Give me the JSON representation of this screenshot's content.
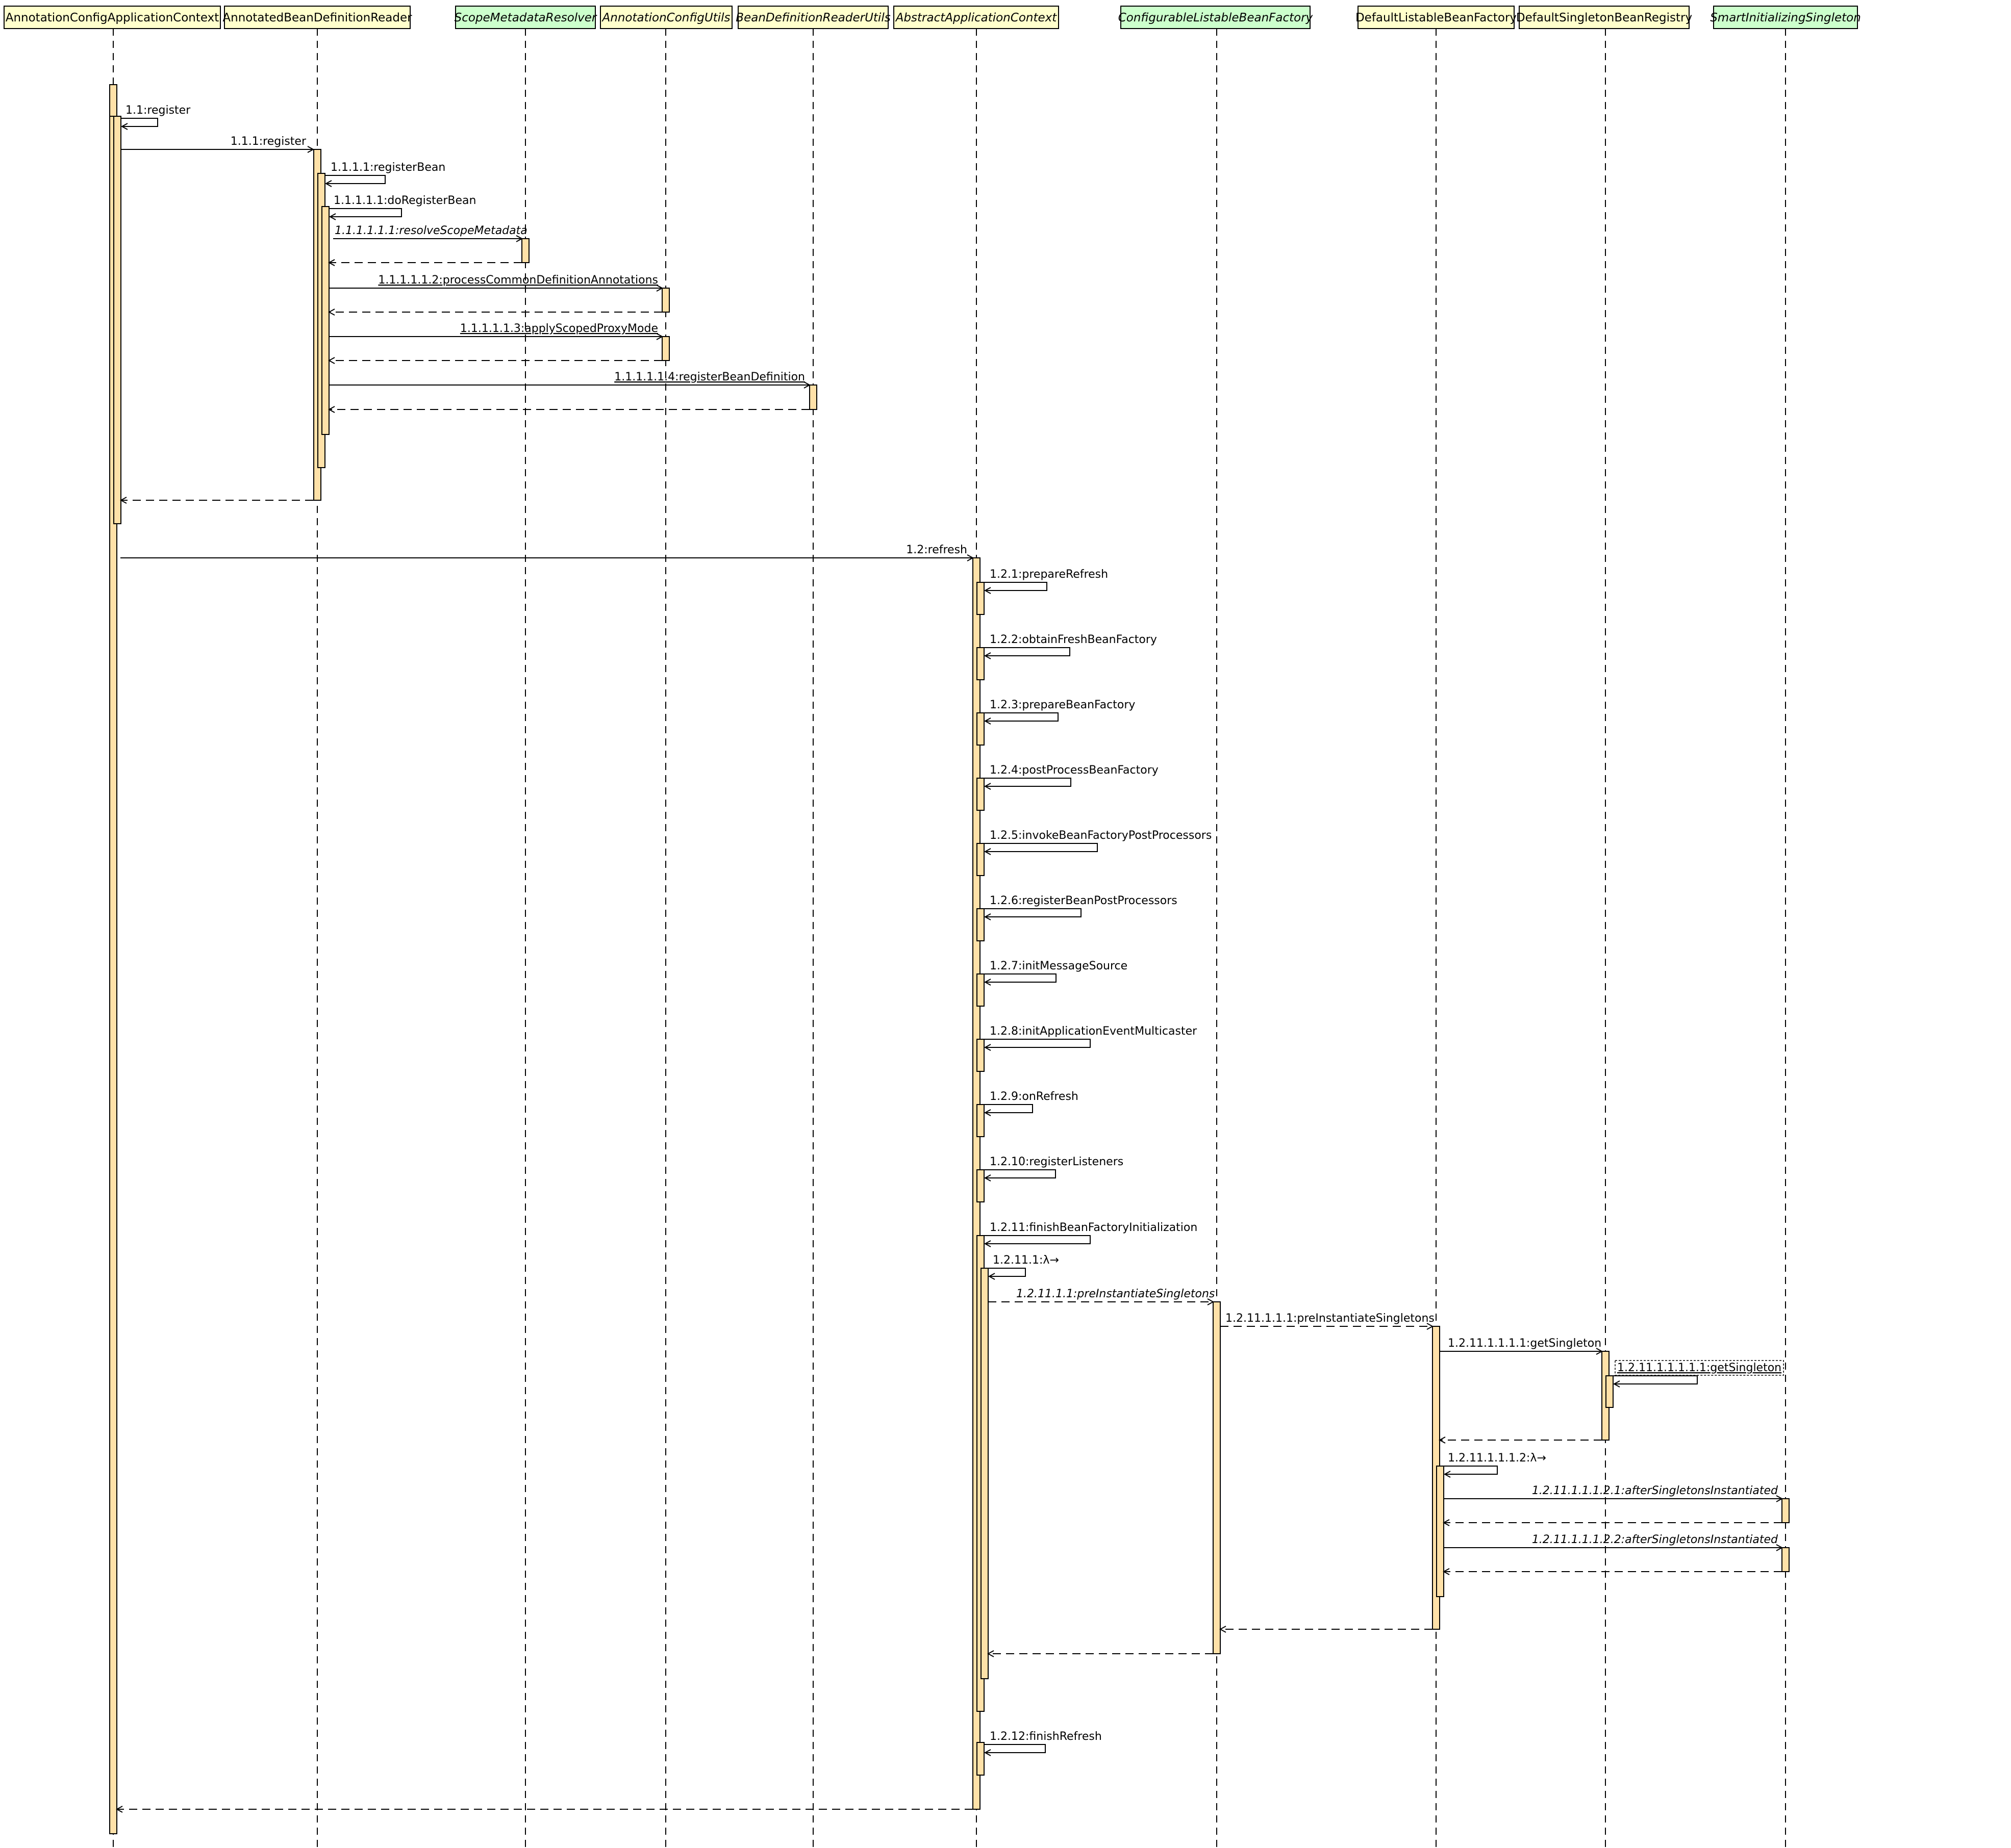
{
  "colors": {
    "class_box": "#ffffcc",
    "interface_box": "#ccffcc",
    "activation": "#ffe1a8",
    "stroke": "#000000"
  },
  "lifelines": [
    {
      "id": "acac",
      "name": "AnnotationConfigApplicationContext",
      "kind": "class",
      "italic": false
    },
    {
      "id": "abdr",
      "name": "AnnotatedBeanDefinitionReader",
      "kind": "class",
      "italic": false
    },
    {
      "id": "smr",
      "name": "ScopeMetadataResolver",
      "kind": "interface",
      "italic": true
    },
    {
      "id": "acu",
      "name": "AnnotationConfigUtils",
      "kind": "class",
      "italic": true
    },
    {
      "id": "bdru",
      "name": "BeanDefinitionReaderUtils",
      "kind": "class",
      "italic": true
    },
    {
      "id": "aac",
      "name": "AbstractApplicationContext",
      "kind": "class",
      "italic": true
    },
    {
      "id": "clbf",
      "name": "ConfigurableListableBeanFactory",
      "kind": "interface",
      "italic": true
    },
    {
      "id": "dlbf",
      "name": "DefaultListableBeanFactory",
      "kind": "class",
      "italic": false
    },
    {
      "id": "dsbr",
      "name": "DefaultSingletonBeanRegistry",
      "kind": "class",
      "italic": false
    },
    {
      "id": "sis",
      "name": "SmartInitializingSingleton",
      "kind": "interface",
      "italic": true
    }
  ],
  "messages": [
    {
      "label": "1.1:register",
      "from": "acac",
      "to": "acac",
      "type": "self"
    },
    {
      "label": "1.1.1:register",
      "from": "acac",
      "to": "abdr",
      "type": "call"
    },
    {
      "label": "1.1.1.1:registerBean",
      "from": "abdr",
      "to": "abdr",
      "type": "self"
    },
    {
      "label": "1.1.1.1.1:doRegisterBean",
      "from": "abdr",
      "to": "abdr",
      "type": "self"
    },
    {
      "label": "1.1.1.1.1.1:resolveScopeMetadata",
      "from": "abdr",
      "to": "smr",
      "type": "call",
      "italic": true
    },
    {
      "label": "",
      "from": "smr",
      "to": "abdr",
      "type": "return"
    },
    {
      "label": "1.1.1.1.1.2:processCommonDefinitionAnnotations",
      "from": "abdr",
      "to": "acu",
      "type": "call",
      "underline": true
    },
    {
      "label": "",
      "from": "acu",
      "to": "abdr",
      "type": "return"
    },
    {
      "label": "1.1.1.1.1.3:applyScopedProxyMode",
      "from": "abdr",
      "to": "acu",
      "type": "call",
      "underline": true
    },
    {
      "label": "",
      "from": "acu",
      "to": "abdr",
      "type": "return"
    },
    {
      "label": "1.1.1.1.1.4:registerBeanDefinition",
      "from": "abdr",
      "to": "bdru",
      "type": "call",
      "underline": true
    },
    {
      "label": "",
      "from": "bdru",
      "to": "abdr",
      "type": "return"
    },
    {
      "label": "",
      "from": "abdr",
      "to": "acac",
      "type": "return"
    },
    {
      "label": "1.2:refresh",
      "from": "acac",
      "to": "aac",
      "type": "call"
    },
    {
      "label": "1.2.1:prepareRefresh",
      "from": "aac",
      "to": "aac",
      "type": "self"
    },
    {
      "label": "1.2.2:obtainFreshBeanFactory",
      "from": "aac",
      "to": "aac",
      "type": "self"
    },
    {
      "label": "1.2.3:prepareBeanFactory",
      "from": "aac",
      "to": "aac",
      "type": "self"
    },
    {
      "label": "1.2.4:postProcessBeanFactory",
      "from": "aac",
      "to": "aac",
      "type": "self"
    },
    {
      "label": "1.2.5:invokeBeanFactoryPostProcessors",
      "from": "aac",
      "to": "aac",
      "type": "self"
    },
    {
      "label": "1.2.6:registerBeanPostProcessors",
      "from": "aac",
      "to": "aac",
      "type": "self"
    },
    {
      "label": "1.2.7:initMessageSource",
      "from": "aac",
      "to": "aac",
      "type": "self"
    },
    {
      "label": "1.2.8:initApplicationEventMulticaster",
      "from": "aac",
      "to": "aac",
      "type": "self"
    },
    {
      "label": "1.2.9:onRefresh",
      "from": "aac",
      "to": "aac",
      "type": "self"
    },
    {
      "label": "1.2.10:registerListeners",
      "from": "aac",
      "to": "aac",
      "type": "self"
    },
    {
      "label": "1.2.11:finishBeanFactoryInitialization",
      "from": "aac",
      "to": "aac",
      "type": "self"
    },
    {
      "label": "1.2.11.1:λ→",
      "from": "aac",
      "to": "aac",
      "type": "self"
    },
    {
      "label": "1.2.11.1.1:preInstantiateSingletons",
      "from": "aac",
      "to": "clbf",
      "type": "async",
      "italic": true
    },
    {
      "label": "1.2.11.1.1.1:preInstantiateSingletons",
      "from": "clbf",
      "to": "dlbf",
      "type": "async"
    },
    {
      "label": "1.2.11.1.1.1.1:getSingleton",
      "from": "dlbf",
      "to": "dsbr",
      "type": "call"
    },
    {
      "label": "1.2.11.1.1.1.1.1:getSingleton",
      "from": "dsbr",
      "to": "dsbr",
      "type": "self",
      "underline": true,
      "boxed": true
    },
    {
      "label": "",
      "from": "dsbr",
      "to": "dlbf",
      "type": "return"
    },
    {
      "label": "1.2.11.1.1.1.2:λ→",
      "from": "dlbf",
      "to": "dlbf",
      "type": "self"
    },
    {
      "label": "1.2.11.1.1.1.2.1:afterSingletonsInstantiated",
      "from": "dlbf",
      "to": "sis",
      "type": "call",
      "italic": true
    },
    {
      "label": "",
      "from": "sis",
      "to": "dlbf",
      "type": "return"
    },
    {
      "label": "1.2.11.1.1.1.2.2:afterSingletonsInstantiated",
      "from": "dlbf",
      "to": "sis",
      "type": "call",
      "italic": true
    },
    {
      "label": "",
      "from": "sis",
      "to": "dlbf",
      "type": "return"
    },
    {
      "label": "",
      "from": "dlbf",
      "to": "clbf",
      "type": "return"
    },
    {
      "label": "",
      "from": "clbf",
      "to": "aac",
      "type": "return"
    },
    {
      "label": "1.2.12:finishRefresh",
      "from": "aac",
      "to": "aac",
      "type": "self"
    },
    {
      "label": "",
      "from": "aac",
      "to": "acac",
      "type": "return"
    }
  ]
}
